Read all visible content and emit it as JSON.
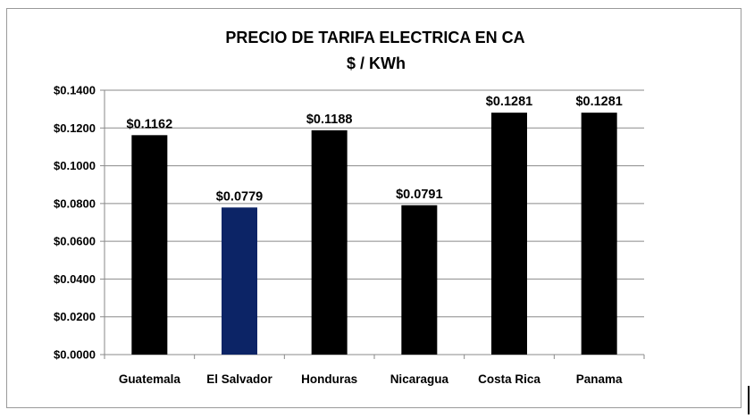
{
  "chart_data": {
    "type": "bar",
    "title_lines": [
      "PRECIO DE TARIFA ELECTRICA EN CA",
      "$ / KWh"
    ],
    "categories": [
      "Guatemala",
      "El Salvador",
      "Honduras",
      "Nicaragua",
      "Costa Rica",
      "Panama"
    ],
    "values": [
      0.1162,
      0.0779,
      0.1188,
      0.0791,
      0.1281,
      0.1281
    ],
    "data_labels": [
      "$0.1162",
      "$0.0779",
      "$0.1188",
      "$0.0791",
      "$0.1281",
      "$0.1281"
    ],
    "bar_colors": [
      "#000000",
      "#0c2466",
      "#000000",
      "#000000",
      "#000000",
      "#000000"
    ],
    "ylim": [
      0,
      0.14
    ],
    "yticks": [
      0,
      0.02,
      0.04,
      0.06,
      0.08,
      0.1,
      0.12,
      0.14
    ],
    "ytick_labels": [
      "$0.0000",
      "$0.0200",
      "$0.0400",
      "$0.0600",
      "$0.0800",
      "$0.1000",
      "$0.1200",
      "$0.1400"
    ],
    "grid": true,
    "grid_color": "#8a8a8a",
    "legend": "none",
    "xlabel": "",
    "ylabel": ""
  }
}
